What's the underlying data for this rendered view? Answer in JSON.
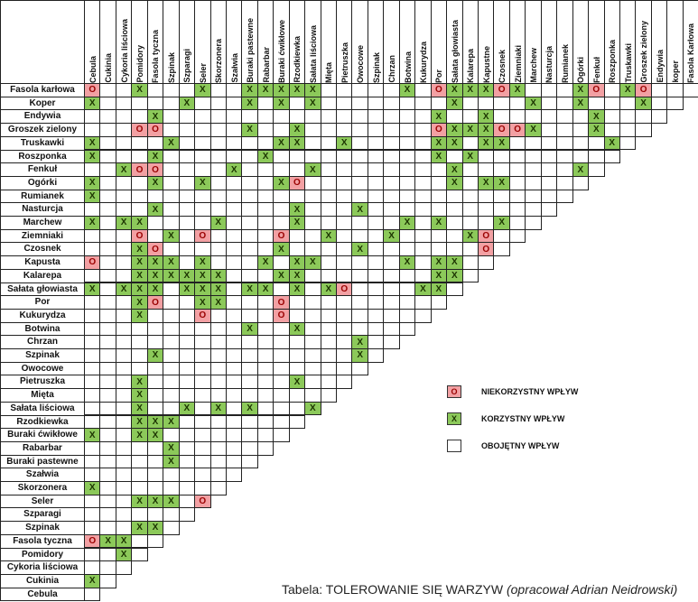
{
  "columns": [
    "Cebula",
    "Cukinia",
    "Cykoria liściowa",
    "Pomidory",
    "Fasola tyczna",
    "Szpinak",
    "Szparagi",
    "Seler",
    "Skorzonera",
    "Szałwia",
    "Buraki pastewne",
    "Rabarbar",
    "Buraki ćwikłowe",
    "Rzodkiewka",
    "Sałata liściowa",
    "Mięta",
    "Pietruszka",
    "Owocowe",
    "Szpinak",
    "Chrzan",
    "Botwina",
    "Kukurydza",
    "Por",
    "Sałata głowiasta",
    "Kalarepa",
    "Kapustne",
    "Czosnek",
    "Ziemniaki",
    "Marchew",
    "Nasturcja",
    "Rumianek",
    "Ogórki",
    "Fenkuł",
    "Roszponka",
    "Truskawki",
    "Groszek zielony",
    "Endywia",
    "koper",
    "Fasola Karłowa"
  ],
  "rows": [
    {
      "label": "Fasola karłowa",
      "marks": {
        "0": "O",
        "3": "X",
        "7": "X",
        "10": "X",
        "11": "X",
        "12": "X",
        "13": "X",
        "14": "X",
        "20": "X",
        "22": "O",
        "23": "X",
        "24": "X",
        "25": "X",
        "26": "O",
        "27": "X",
        "31": "X",
        "32": "O",
        "34": "X",
        "35": "O"
      }
    },
    {
      "label": "Koper",
      "marks": {
        "0": "X",
        "6": "X",
        "10": "X",
        "12": "X",
        "14": "X",
        "23": "X",
        "28": "X",
        "31": "X",
        "35": "X"
      }
    },
    {
      "label": "Endywia",
      "marks": {
        "4": "X",
        "22": "X",
        "25": "X",
        "32": "X"
      }
    },
    {
      "label": "Groszek zielony",
      "marks": {
        "3": "O",
        "4": "O",
        "10": "X",
        "13": "X",
        "22": "O",
        "23": "X",
        "24": "X",
        "25": "X",
        "26": "O",
        "27": "O",
        "28": "X",
        "32": "X"
      }
    },
    {
      "label": "Truskawki",
      "marks": {
        "0": "X",
        "5": "X",
        "12": "X",
        "13": "X",
        "16": "X",
        "22": "X",
        "23": "X",
        "25": "X",
        "26": "X",
        "33": "X"
      }
    },
    {
      "label": "Roszponka",
      "marks": {
        "0": "X",
        "4": "X",
        "11": "X",
        "22": "X",
        "24": "X"
      }
    },
    {
      "label": "Fenkuł",
      "marks": {
        "2": "X",
        "3": "O",
        "4": "O",
        "9": "X",
        "14": "X",
        "23": "X",
        "31": "X"
      }
    },
    {
      "label": "Ogórki",
      "marks": {
        "0": "X",
        "4": "X",
        "7": "X",
        "12": "X",
        "13": "O",
        "23": "X",
        "25": "X",
        "26": "X"
      }
    },
    {
      "label": "Rumianek",
      "marks": {
        "0": "X"
      }
    },
    {
      "label": "Nasturcja",
      "marks": {
        "4": "X",
        "13": "X",
        "17": "X"
      }
    },
    {
      "label": "Marchew",
      "marks": {
        "0": "X",
        "2": "X",
        "3": "X",
        "8": "X",
        "13": "X",
        "20": "X",
        "22": "X",
        "26": "X"
      }
    },
    {
      "label": "Ziemniaki",
      "marks": {
        "3": "O",
        "5": "X",
        "7": "O",
        "12": "O",
        "15": "X",
        "19": "X",
        "24": "X",
        "25": "O"
      }
    },
    {
      "label": "Czosnek",
      "marks": {
        "3": "X",
        "4": "O",
        "12": "X",
        "17": "X",
        "25": "O"
      }
    },
    {
      "label": "Kapusta",
      "marks": {
        "0": "O",
        "3": "X",
        "4": "X",
        "5": "X",
        "7": "X",
        "11": "X",
        "13": "X",
        "14": "X",
        "20": "X",
        "22": "X",
        "23": "X"
      }
    },
    {
      "label": "Kalarepa",
      "marks": {
        "3": "X",
        "4": "X",
        "5": "X",
        "6": "X",
        "7": "X",
        "8": "X",
        "12": "X",
        "13": "X",
        "22": "X",
        "23": "X"
      }
    },
    {
      "label": "Sałata głowiasta",
      "marks": {
        "0": "X",
        "2": "X",
        "3": "X",
        "4": "X",
        "6": "X",
        "7": "X",
        "8": "X",
        "10": "X",
        "11": "X",
        "13": "X",
        "15": "X",
        "16": "O",
        "21": "X",
        "22": "X"
      }
    },
    {
      "label": "Por",
      "marks": {
        "3": "X",
        "4": "O",
        "7": "X",
        "8": "X",
        "12": "O"
      }
    },
    {
      "label": "Kukurydza",
      "marks": {
        "3": "X",
        "7": "O",
        "12": "O"
      }
    },
    {
      "label": "Botwina",
      "marks": {
        "10": "X",
        "13": "X"
      }
    },
    {
      "label": "Chrzan",
      "marks": {
        "17": "X"
      }
    },
    {
      "label": "Szpinak",
      "marks": {
        "4": "X",
        "17": "X"
      }
    },
    {
      "label": "Owocowe",
      "marks": {}
    },
    {
      "label": "Pietruszka",
      "marks": {
        "3": "X",
        "13": "X"
      }
    },
    {
      "label": "Mięta",
      "marks": {
        "3": "X"
      }
    },
    {
      "label": "Sałata liściowa",
      "marks": {
        "3": "X",
        "6": "X",
        "8": "X",
        "10": "X",
        "14": "X"
      }
    },
    {
      "label": "Rzodkiewka",
      "marks": {
        "3": "X",
        "4": "X",
        "5": "X"
      }
    },
    {
      "label": "Buraki ćwikłowe",
      "marks": {
        "0": "X",
        "3": "X",
        "4": "X"
      }
    },
    {
      "label": "Rabarbar",
      "marks": {
        "5": "X"
      }
    },
    {
      "label": "Buraki pastewne",
      "marks": {
        "5": "X"
      }
    },
    {
      "label": "Szałwia",
      "marks": {}
    },
    {
      "label": "Skorzonera",
      "marks": {
        "0": "X"
      }
    },
    {
      "label": "Seler",
      "marks": {
        "3": "X",
        "4": "X",
        "5": "X",
        "7": "O"
      }
    },
    {
      "label": "Szparagi",
      "marks": {}
    },
    {
      "label": "Szpinak",
      "marks": {
        "3": "X",
        "4": "X"
      }
    },
    {
      "label": "Fasola tyczna",
      "marks": {
        "0": "O",
        "1": "X",
        "2": "X"
      }
    },
    {
      "label": "Pomidory",
      "marks": {
        "2": "X"
      }
    },
    {
      "label": "Cykoria liściowa",
      "marks": {}
    },
    {
      "label": "Cukinia",
      "marks": {
        "0": "X"
      }
    },
    {
      "label": "Cebula",
      "marks": {}
    }
  ],
  "legend": [
    {
      "symbol": "O",
      "label": "NIEKORZYSTNY WPŁYW",
      "color": "#f2a0a3"
    },
    {
      "symbol": "X",
      "label": "KORZYSTNY WPŁYW",
      "color": "#8cc95a"
    },
    {
      "symbol": "",
      "label": "OBOJĘTNY WPŁYW",
      "color": "#ffffff"
    }
  ],
  "caption": {
    "main": "Tabela: TOLEROWANIE SIĘ WARZYW ",
    "author": "(opracował Adrian Neidrowski)"
  },
  "colors": {
    "beneficial": "#8cc95a",
    "harmful": "#f2a0a3",
    "neutral": "#ffffff"
  }
}
